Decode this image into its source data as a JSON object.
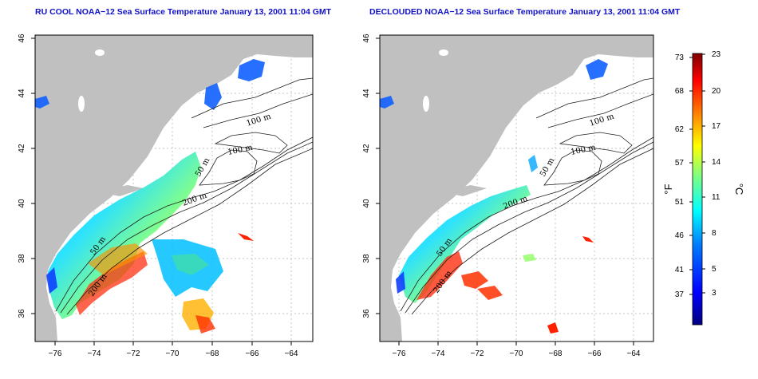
{
  "panels": [
    {
      "title": "RU COOL NOAA−12 Sea Surface Temperature January 13, 2001 11:04 GMT",
      "contour_labels": [
        "100 m",
        "100 m",
        "50 m",
        "200 m",
        "50 m",
        "200 m"
      ]
    },
    {
      "title": "DECLOUDED NOAA−12 Sea Surface Temperature January 13, 2001 11:04 GMT",
      "contour_labels": [
        "100 m",
        "100 m",
        "50 m",
        "200 m",
        "50 m",
        "200 m"
      ]
    }
  ],
  "x_ticks": [
    "−76",
    "−74",
    "−72",
    "−70",
    "−68",
    "−66",
    "−64"
  ],
  "y_ticks": [
    "36",
    "38",
    "40",
    "42",
    "44",
    "46"
  ],
  "colorbar": {
    "fahrenheit_label": "°F",
    "celsius_label": "°C",
    "fahrenheit_ticks": [
      "73",
      "68",
      "62",
      "57",
      "51",
      "46",
      "41",
      "37"
    ],
    "celsius_ticks": [
      "23",
      "20",
      "17",
      "14",
      "11",
      "8",
      "5",
      "3"
    ],
    "colors": [
      "#00007f",
      "#0000ff",
      "#0080ff",
      "#00ffff",
      "#80ff80",
      "#ffff00",
      "#ff8000",
      "#ff0000",
      "#7f0000"
    ]
  },
  "colors": {
    "land": "#c0c0c0",
    "title": "#1010c8"
  }
}
